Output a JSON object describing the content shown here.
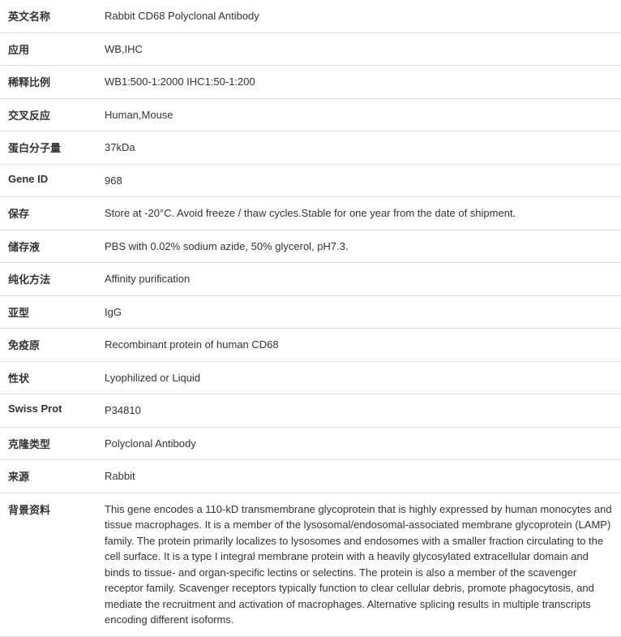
{
  "rows": [
    {
      "label": "英文名称",
      "value": "Rabbit CD68 Polyclonal Antibody"
    },
    {
      "label": "应用",
      "value": "WB,IHC"
    },
    {
      "label": "稀释比例",
      "value": "WB1:500-1:2000 IHC1:50-1:200"
    },
    {
      "label": "交叉反应",
      "value": "Human,Mouse"
    },
    {
      "label": "蛋白分子量",
      "value": "37kDa"
    },
    {
      "label": "Gene ID",
      "value": "968"
    },
    {
      "label": "保存",
      "value": "Store at -20°C. Avoid freeze / thaw cycles.Stable for one year from the date of shipment."
    },
    {
      "label": "储存液",
      "value": "PBS with 0.02% sodium azide, 50% glycerol, pH7.3."
    },
    {
      "label": "纯化方法",
      "value": "Affinity purification"
    },
    {
      "label": "亚型",
      "value": "IgG"
    },
    {
      "label": "免疫原",
      "value": "Recombinant protein of human CD68"
    },
    {
      "label": "性状",
      "value": "Lyophilized or Liquid"
    },
    {
      "label": "Swiss Prot",
      "value": "P34810"
    },
    {
      "label": "克隆类型",
      "value": "Polyclonal Antibody"
    },
    {
      "label": "来源",
      "value": "Rabbit"
    },
    {
      "label": "背景资料",
      "value": "This gene encodes a 110-kD transmembrane glycoprotein that is highly expressed by human monocytes and tissue macrophages. It is a member of the lysosomal/endosomal-associated membrane glycoprotein (LAMP) family. The protein primarily localizes to lysosomes and endosomes with a smaller fraction circulating to the cell surface. It is a type I integral membrane protein with a heavily glycosylated extracellular domain and binds to tissue- and organ-specific lectins or selectins. The protein is also a member of the scavenger receptor family. Scavenger receptors typically function to clear cellular debris, promote phagocytosis, and mediate the recruitment and activation of macrophages. Alternative splicing results in multiple transcripts encoding different isoforms."
    }
  ]
}
